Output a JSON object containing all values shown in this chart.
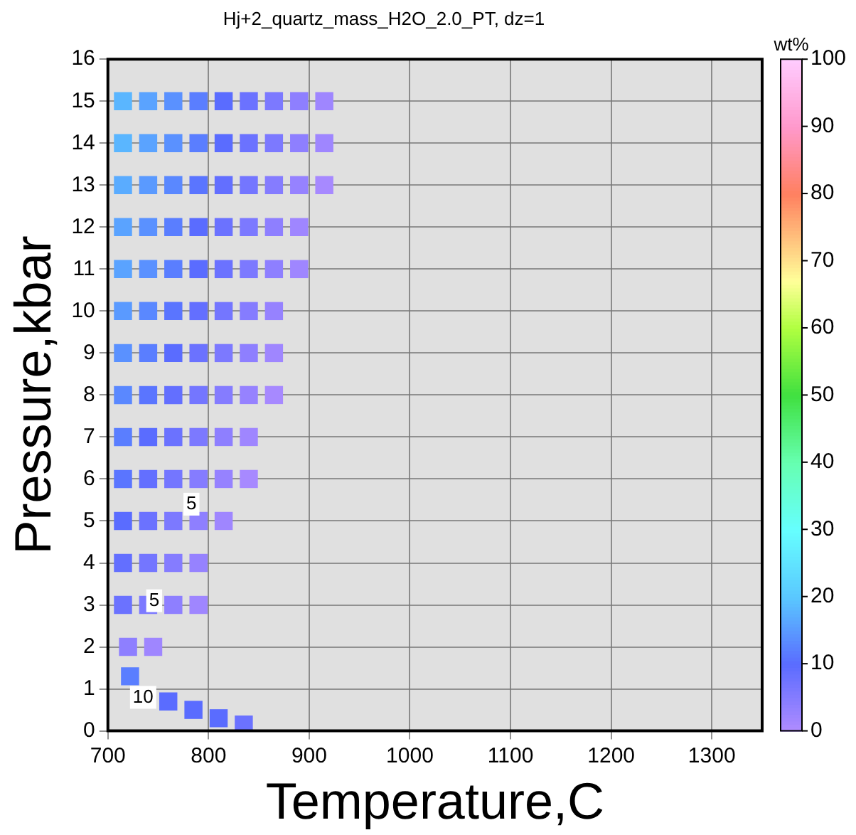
{
  "chart_data": {
    "type": "scatter",
    "title": "Hj+2_quartz_mass_H2O_2.0_PT, dz=1",
    "xlabel": "Temperature,C",
    "ylabel": "Pressure,kbar",
    "clabel": "wt%",
    "xlim": [
      700,
      1350
    ],
    "xticks": [
      700,
      800,
      900,
      1000,
      1100,
      1200,
      1300
    ],
    "ylim": [
      0,
      16
    ],
    "yticks": [
      0,
      1,
      2,
      3,
      4,
      5,
      6,
      7,
      8,
      9,
      10,
      11,
      12,
      13,
      14,
      15,
      16
    ],
    "clim": [
      0,
      100
    ],
    "cticks": [
      0,
      10,
      20,
      30,
      40,
      50,
      60,
      70,
      80,
      90,
      100
    ],
    "grid": true,
    "marker": "square",
    "legend": false,
    "series": [
      {
        "x": [
          720,
          745,
          715,
          740,
          765,
          790,
          715,
          740,
          765,
          790,
          715,
          740,
          765,
          790,
          815,
          715,
          740,
          765,
          790,
          815,
          840,
          715,
          740,
          765,
          790,
          815,
          840,
          715,
          740,
          765,
          790,
          815,
          840,
          865,
          715,
          740,
          765,
          790,
          815,
          840,
          865,
          715,
          740,
          765,
          790,
          815,
          840,
          865,
          715,
          740,
          765,
          790,
          815,
          840,
          865,
          890,
          715,
          740,
          765,
          790,
          815,
          840,
          865,
          890,
          715,
          740,
          765,
          790,
          815,
          840,
          865,
          890,
          915,
          715,
          740,
          765,
          790,
          815,
          840,
          865,
          890,
          915,
          715,
          740,
          765,
          790,
          815,
          840,
          865,
          890,
          915,
          722,
          760,
          785,
          810,
          835
        ],
        "values": [
          2,
          2,
          3,
          3,
          3,
          3,
          4,
          4,
          4,
          4,
          5,
          5,
          5,
          5,
          5,
          6,
          6,
          6,
          6,
          6,
          6,
          7,
          7,
          7,
          7,
          7,
          7,
          8,
          8,
          8,
          8,
          8,
          8,
          8,
          9,
          9,
          9,
          9,
          9,
          9,
          9,
          10,
          10,
          10,
          10,
          10,
          10,
          10,
          11,
          11,
          11,
          11,
          11,
          11,
          11,
          11,
          12,
          12,
          12,
          12,
          12,
          12,
          12,
          12,
          13,
          13,
          13,
          13,
          13,
          13,
          13,
          13,
          13,
          14,
          14,
          14,
          14,
          14,
          14,
          14,
          14,
          14,
          15,
          15,
          15,
          15,
          15,
          15,
          15,
          15,
          15,
          1.3,
          0.7,
          0.5,
          0.3,
          0.15
        ],
        "cvalues": [
          4,
          2,
          8,
          6,
          4,
          2,
          9,
          7,
          5,
          3,
          10,
          8,
          6,
          4,
          2,
          11,
          9,
          7,
          5,
          3,
          1,
          12,
          10,
          8,
          6,
          4,
          2,
          13,
          11,
          9,
          7,
          5,
          3,
          1,
          14,
          12,
          10,
          8,
          6,
          4,
          2,
          15,
          13,
          11,
          9,
          7,
          5,
          3,
          16,
          14,
          12,
          10,
          8,
          6,
          4,
          2,
          16,
          14,
          12,
          10,
          8,
          6,
          4,
          2,
          17,
          15,
          13,
          11,
          9,
          7,
          5,
          3,
          1,
          18,
          16,
          14,
          12,
          10,
          8,
          6,
          4,
          2,
          18,
          16,
          14,
          12,
          10,
          8,
          6,
          4,
          2,
          12,
          10,
          10,
          10,
          8
        ]
      }
    ],
    "annotations": [
      {
        "text": "5",
        "x": 783,
        "y": 5.4
      },
      {
        "text": "5",
        "x": 746,
        "y": 3.1
      },
      {
        "text": "10",
        "x": 735,
        "y": 0.8
      }
    ]
  }
}
